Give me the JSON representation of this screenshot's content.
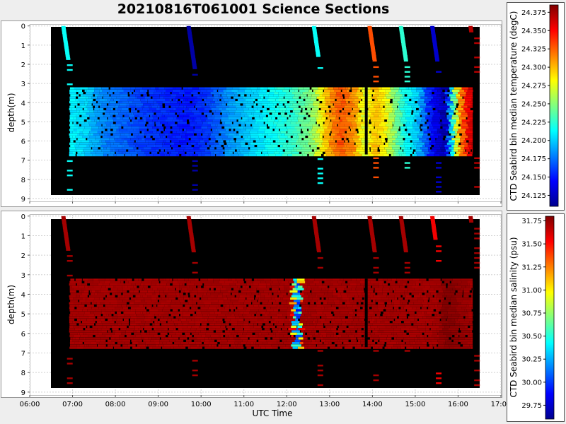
{
  "title": "20210816T061001 Science Sections",
  "chart_data": [
    {
      "type": "heatmap",
      "title": "20210816T061001 Science Sections",
      "xlabel": "",
      "ylabel": "depth(m)",
      "xlim": [
        "06:00",
        "17:00"
      ],
      "ylim": [
        9,
        0
      ],
      "y_inverted": true,
      "grid": true,
      "xticks": [
        "06:00",
        "07:00",
        "08:00",
        "09:00",
        "10:00",
        "11:00",
        "12:00",
        "13:00",
        "14:00",
        "15:00",
        "16:00",
        "17:00"
      ],
      "yticks": [
        "0",
        "1",
        "2",
        "3",
        "4",
        "5",
        "6",
        "7",
        "8",
        "9"
      ],
      "background": "#000000",
      "colorbar": {
        "label": "CTD Seabird bin median temperature (degC)",
        "range": [
          24.11,
          24.385
        ],
        "ticks": [
          "24.125",
          "24.150",
          "24.175",
          "24.200",
          "24.225",
          "24.250",
          "24.275",
          "24.300",
          "24.325",
          "24.350",
          "24.375"
        ],
        "colormap": "jet"
      },
      "main_section": {
        "time_start": "06:40",
        "time_end": "16:20",
        "depth_top": 3.2,
        "depth_bottom": 6.7
      },
      "temperature_along_time": [
        {
          "time": "06:40",
          "value": 24.21
        },
        {
          "time": "07:00",
          "value": 24.205
        },
        {
          "time": "07:30",
          "value": 24.18
        },
        {
          "time": "08:00",
          "value": 24.17
        },
        {
          "time": "08:30",
          "value": 24.16
        },
        {
          "time": "09:00",
          "value": 24.155
        },
        {
          "time": "09:30",
          "value": 24.15
        },
        {
          "time": "10:00",
          "value": 24.16
        },
        {
          "time": "10:30",
          "value": 24.185
        },
        {
          "time": "11:00",
          "value": 24.2
        },
        {
          "time": "11:30",
          "value": 24.215
        },
        {
          "time": "12:00",
          "value": 24.225
        },
        {
          "time": "12:30",
          "value": 24.25
        },
        {
          "time": "12:50",
          "value": 24.3
        },
        {
          "time": "13:10",
          "value": 24.33
        },
        {
          "time": "13:30",
          "value": 24.31
        },
        {
          "time": "13:45",
          "value": 24.27
        },
        {
          "time": "14:00",
          "value": 24.3
        },
        {
          "time": "14:15",
          "value": 24.28
        },
        {
          "time": "14:40",
          "value": 24.22
        },
        {
          "time": "15:00",
          "value": 24.2
        },
        {
          "time": "15:20",
          "value": 24.15
        },
        {
          "time": "15:40",
          "value": 24.12
        },
        {
          "time": "16:00",
          "value": 24.3
        },
        {
          "time": "16:15",
          "value": 24.36
        }
      ],
      "profiles": [
        {
          "time": "06:35",
          "depth_top": 0,
          "depth_bottom": 1.7,
          "value": 24.215
        },
        {
          "time": "09:35",
          "depth_top": 0,
          "depth_bottom": 2.2,
          "value": 24.12
        },
        {
          "time": "12:35",
          "depth_top": 0,
          "depth_bottom": 1.6,
          "value": 24.215
        },
        {
          "time": "13:55",
          "depth_top": 0,
          "depth_bottom": 1.8,
          "value": 24.33
        },
        {
          "time": "14:40",
          "depth_top": 0,
          "depth_bottom": 1.8,
          "value": 24.225
        },
        {
          "time": "15:25",
          "depth_top": 0,
          "depth_bottom": 1.8,
          "value": 24.13
        },
        {
          "time": "16:20",
          "depth_top": 0,
          "depth_bottom": 0.3,
          "value": 24.37
        }
      ]
    },
    {
      "type": "heatmap",
      "title": "",
      "xlabel": "UTC Time",
      "ylabel": "depth(m)",
      "xlim": [
        "06:00",
        "17:00"
      ],
      "ylim": [
        9,
        0
      ],
      "y_inverted": true,
      "grid": true,
      "xticks": [
        "06:00",
        "07:00",
        "08:00",
        "09:00",
        "10:00",
        "11:00",
        "12:00",
        "13:00",
        "14:00",
        "15:00",
        "16:00",
        "17:00"
      ],
      "yticks": [
        "0",
        "1",
        "2",
        "3",
        "4",
        "5",
        "6",
        "7",
        "8",
        "9"
      ],
      "background": "#000000",
      "colorbar": {
        "label": "CTD Seabird bin median salinity (psu)",
        "range": [
          29.6,
          31.8
        ],
        "ticks": [
          "29.75",
          "30.00",
          "30.25",
          "30.50",
          "30.75",
          "31.00",
          "31.25",
          "31.50",
          "31.75"
        ],
        "colormap": "jet"
      },
      "main_section": {
        "time_start": "06:40",
        "time_end": "16:20",
        "depth_top": 3.2,
        "depth_bottom": 6.7
      },
      "salinity_along_time": [
        {
          "time": "06:40",
          "value": 31.72
        },
        {
          "time": "12:00",
          "value": 31.72
        },
        {
          "time": "12:05",
          "value": 30.3
        },
        {
          "time": "12:10",
          "value": 29.9
        },
        {
          "time": "12:15",
          "value": 31.72
        },
        {
          "time": "15:30",
          "value": 31.72
        },
        {
          "time": "15:40",
          "value": 31.8
        },
        {
          "time": "16:20",
          "value": 31.72
        }
      ],
      "profiles": [
        {
          "time": "06:35",
          "depth_top": 0,
          "depth_bottom": 1.7,
          "value": 31.72
        },
        {
          "time": "09:35",
          "depth_top": 0,
          "depth_bottom": 1.8,
          "value": 31.72
        },
        {
          "time": "12:35",
          "depth_top": 0,
          "depth_bottom": 1.8,
          "value": 31.72
        },
        {
          "time": "13:55",
          "depth_top": 0,
          "depth_bottom": 1.8,
          "value": 31.72
        },
        {
          "time": "14:40",
          "depth_top": 0,
          "depth_bottom": 1.8,
          "value": 31.72
        },
        {
          "time": "15:25",
          "depth_top": 0,
          "depth_bottom": 1.2,
          "value": 31.55
        },
        {
          "time": "16:20",
          "depth_top": 0,
          "depth_bottom": 0.3,
          "value": 31.72
        }
      ]
    }
  ]
}
